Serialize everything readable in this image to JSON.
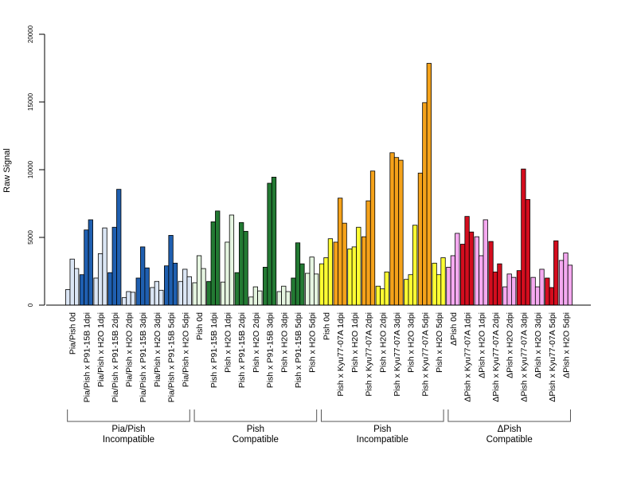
{
  "chart_data": {
    "type": "bar",
    "ylabel": "Raw Signal",
    "ylim": [
      0,
      20000
    ],
    "yticks": [
      0,
      5000,
      10000,
      15000,
      20000
    ],
    "grid": false,
    "legend": "none",
    "bar_border_color": "#000000",
    "groups": [
      {
        "name": "Pia/Pish\nIncompatible",
        "categories": [
          {
            "label": "Pia/Pish 0d",
            "color": "#dbe6f5",
            "values": [
              1150,
              3400,
              2700
            ]
          },
          {
            "label": "Pia/Pish x P91-15B 1dpi",
            "color": "#1f5fb0",
            "values": [
              2250,
              5550,
              6300
            ]
          },
          {
            "label": "Pia/Pish x H2O 1dpi",
            "color": "#dbe6f5",
            "values": [
              2000,
              3800,
              5700
            ]
          },
          {
            "label": "Pia/Pish x P91-15B 2dpi",
            "color": "#1f5fb0",
            "values": [
              2400,
              5750,
              8550
            ]
          },
          {
            "label": "Pia/Pish x H2O 2dpi",
            "color": "#dbe6f5",
            "values": [
              550,
              1000,
              950
            ]
          },
          {
            "label": "Pia/Pish x P91-15B 3dpi",
            "color": "#1f5fb0",
            "values": [
              2000,
              4300,
              2750
            ]
          },
          {
            "label": "Pia/Pish x H2O 3dpi",
            "color": "#dbe6f5",
            "values": [
              1300,
              1750,
              1100
            ]
          },
          {
            "label": "Pia/Pish x P91-15B 5dpi",
            "color": "#1f5fb0",
            "values": [
              2900,
              5150,
              3100
            ]
          },
          {
            "label": "Pia/Pish x H2O 5dpi",
            "color": "#dbe6f5",
            "values": [
              1750,
              2650,
              2100
            ]
          }
        ]
      },
      {
        "name": "Pish\nCompatible",
        "categories": [
          {
            "label": "Pish 0d",
            "color": "#e5f5e0",
            "values": [
              1650,
              3650,
              2700
            ]
          },
          {
            "label": "Pish x P91-15B 1dpi",
            "color": "#237a33",
            "values": [
              1750,
              6150,
              6950
            ]
          },
          {
            "label": "Pish x H2O 1dpi",
            "color": "#e5f5e0",
            "values": [
              1700,
              4650,
              6650
            ]
          },
          {
            "label": "Pish x P91-15B 2dpi",
            "color": "#237a33",
            "values": [
              2400,
              6100,
              5450
            ]
          },
          {
            "label": "Pish x H2O 2dpi",
            "color": "#e5f5e0",
            "values": [
              600,
              1350,
              1050
            ]
          },
          {
            "label": "Pish x P91-15B 3dpi",
            "color": "#237a33",
            "values": [
              2800,
              9000,
              9450
            ]
          },
          {
            "label": "Pish x H2O 3dpi",
            "color": "#e5f5e0",
            "values": [
              1000,
              1400,
              1000
            ]
          },
          {
            "label": "Pish x P91-15B 5dpi",
            "color": "#237a33",
            "values": [
              2000,
              4600,
              3050
            ]
          },
          {
            "label": "Pish x H2O 5dpi",
            "color": "#e5f5e0",
            "values": [
              2350,
              3550,
              2300
            ]
          }
        ]
      },
      {
        "name": "Pish\nIncompatible",
        "categories": [
          {
            "label": "Pish 0d",
            "color": "#ffff33",
            "values": [
              3050,
              3500,
              4900
            ]
          },
          {
            "label": "Pish x Kyu77-07A 1dpi",
            "color": "#f5a21a",
            "values": [
              4650,
              7900,
              6050
            ]
          },
          {
            "label": "Pish x H2O 1dpi",
            "color": "#ffff33",
            "values": [
              4150,
              4300,
              5750
            ]
          },
          {
            "label": "Pish x Kyu77-07A 2dpi",
            "color": "#f5a21a",
            "values": [
              5050,
              7700,
              9900
            ]
          },
          {
            "label": "Pish x H2O 2dpi",
            "color": "#ffff33",
            "values": [
              1400,
              1200,
              2450
            ]
          },
          {
            "label": "Pish x Kyu77-07A 3dpi",
            "color": "#f5a21a",
            "values": [
              11250,
              10900,
              10700
            ]
          },
          {
            "label": "Pish x H2O 3dpi",
            "color": "#ffff33",
            "values": [
              1900,
              2250,
              5900
            ]
          },
          {
            "label": "Pish x Kyu77-07A 5dpi",
            "color": "#f5a21a",
            "values": [
              9750,
              14950,
              17850
            ]
          },
          {
            "label": "Pish x H2O 5dpi",
            "color": "#ffff33",
            "values": [
              3100,
              2250,
              3500
            ]
          }
        ]
      },
      {
        "name": "ΔPish\nCompatible",
        "categories": [
          {
            "label": "ΔPish 0d",
            "color": "#f5a9f0",
            "values": [
              2800,
              3650,
              5300
            ]
          },
          {
            "label": "ΔPish x Kyu77-07A 1dpi",
            "color": "#d40d1e",
            "values": [
              4500,
              6550,
              5400
            ]
          },
          {
            "label": "ΔPish x H2O 1dpi",
            "color": "#f5a9f0",
            "values": [
              5050,
              3650,
              6300
            ]
          },
          {
            "label": "ΔPish x Kyu77-07A 2dpi",
            "color": "#d40d1e",
            "values": [
              4700,
              2450,
              3050
            ]
          },
          {
            "label": "ΔPish x H2O 2dpi",
            "color": "#f5a9f0",
            "values": [
              1350,
              2300,
              2050
            ]
          },
          {
            "label": "ΔPish x Kyu77-07A 3dpi",
            "color": "#d40d1e",
            "values": [
              2550,
              10050,
              7800
            ]
          },
          {
            "label": "ΔPish x H2O 3dpi",
            "color": "#f5a9f0",
            "values": [
              2050,
              1350,
              2650
            ]
          },
          {
            "label": "ΔPish x Kyu77-07A 5dpi",
            "color": "#d40d1e",
            "values": [
              2000,
              1300,
              4750
            ]
          },
          {
            "label": "ΔPish x H2O 5dpi",
            "color": "#f5a9f0",
            "values": [
              3300,
              3850,
              2950
            ]
          }
        ]
      }
    ]
  }
}
